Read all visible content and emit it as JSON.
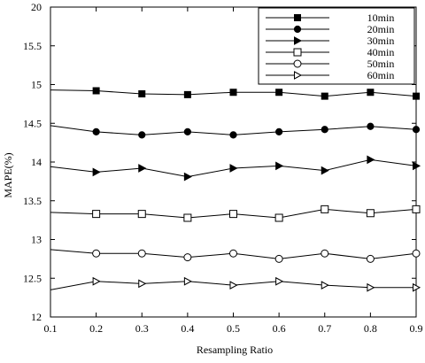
{
  "chart_data": {
    "type": "line",
    "title": "",
    "xlabel": "Resampling Ratio",
    "ylabel": "MAPE(%)",
    "xlim": [
      0.1,
      0.9
    ],
    "ylim": [
      12,
      20
    ],
    "x_ticks": [
      "0.1",
      "0.2",
      "0.3",
      "0.4",
      "0.5",
      "0.6",
      "0.7",
      "0.8",
      "0.9"
    ],
    "y_ticks": [
      "12",
      "12.5",
      "13",
      "13.5",
      "14",
      "14.5",
      "15",
      "15.5",
      "20"
    ],
    "grid": false,
    "legend_position": "top-right",
    "x": [
      0.1,
      0.2,
      0.3,
      0.4,
      0.5,
      0.6,
      0.7,
      0.8,
      0.9
    ],
    "series": [
      {
        "name": "10min",
        "marker": "filled-square",
        "values": [
          14.93,
          14.92,
          14.88,
          14.87,
          14.9,
          14.9,
          14.85,
          14.9,
          14.85
        ]
      },
      {
        "name": "20min",
        "marker": "filled-circle",
        "values": [
          14.47,
          14.39,
          14.35,
          14.39,
          14.35,
          14.39,
          14.42,
          14.46,
          14.42
        ]
      },
      {
        "name": "30min",
        "marker": "filled-triangle",
        "values": [
          13.94,
          13.87,
          13.92,
          13.81,
          13.92,
          13.95,
          13.89,
          14.03,
          13.95
        ]
      },
      {
        "name": "40min",
        "marker": "open-square",
        "values": [
          13.35,
          13.33,
          13.33,
          13.28,
          13.33,
          13.28,
          13.39,
          13.34,
          13.39
        ]
      },
      {
        "name": "50min",
        "marker": "open-circle",
        "values": [
          12.87,
          12.82,
          12.82,
          12.77,
          12.82,
          12.75,
          12.82,
          12.75,
          12.82
        ]
      },
      {
        "name": "60min",
        "marker": "open-triangle",
        "values": [
          12.35,
          12.46,
          12.43,
          12.46,
          12.41,
          12.46,
          12.41,
          12.38,
          12.38
        ]
      }
    ]
  }
}
